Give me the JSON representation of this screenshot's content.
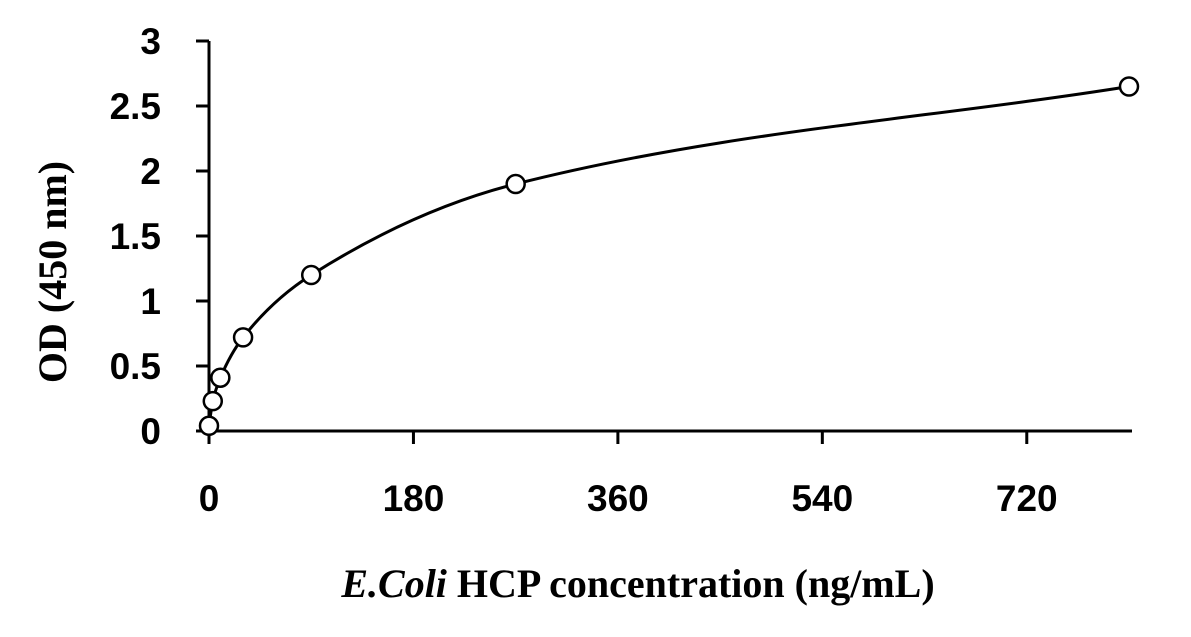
{
  "chart_data": {
    "type": "line",
    "title": "",
    "xlabel": {
      "italic": "E.Coli",
      "rest": " HCP concentration (ng/mL)"
    },
    "ylabel": "OD (450 nm)",
    "xlim": [
      0,
      810
    ],
    "ylim": [
      0,
      3
    ],
    "xticks": [
      0,
      180,
      360,
      540,
      720
    ],
    "yticks": [
      0,
      0.5,
      1,
      1.5,
      2,
      2.5,
      3
    ],
    "xtick_labels": [
      "0",
      "180",
      "360",
      "540",
      "720"
    ],
    "ytick_labels": [
      "0",
      "0.5",
      "1",
      "1.5",
      "2",
      "2.5",
      "3"
    ],
    "grid": false,
    "legend": "none",
    "marker": "open-circle",
    "smooth": true,
    "series": [
      {
        "x": [
          0,
          3.33,
          10,
          30,
          90,
          270,
          810
        ],
        "y": [
          0.04,
          0.23,
          0.41,
          0.72,
          1.2,
          1.9,
          2.65
        ]
      }
    ]
  },
  "colors": {
    "line": "#000000",
    "marker_fill": "#ffffff",
    "background": "#ffffff"
  }
}
